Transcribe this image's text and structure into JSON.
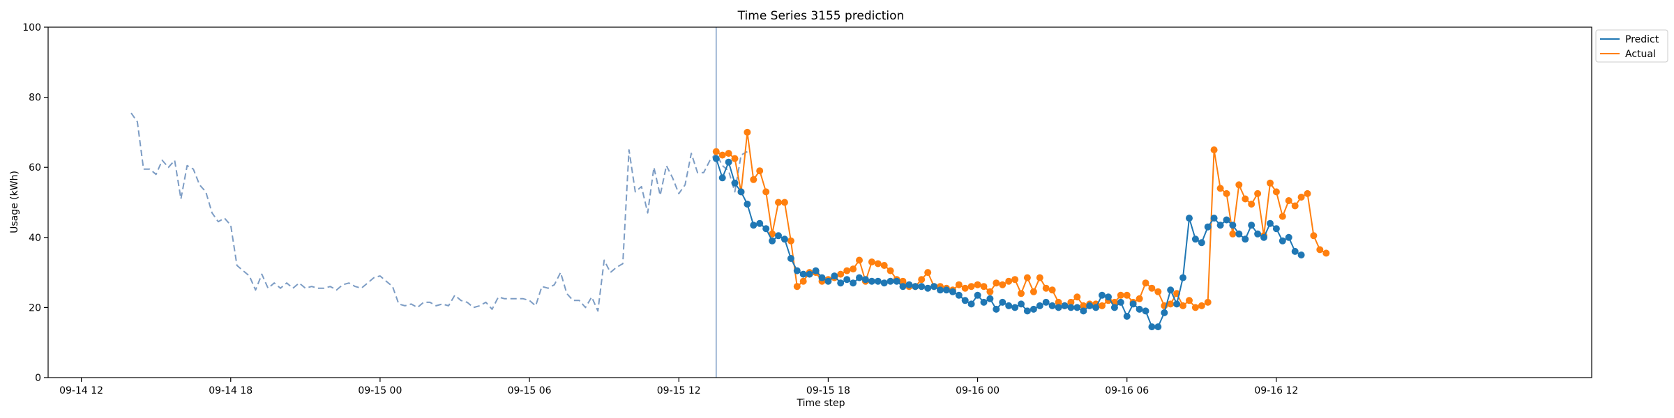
{
  "chart_data": {
    "type": "line",
    "title": "Time Series 3155 prediction",
    "xlabel": "Time step",
    "ylabel": "Usage (kWh)",
    "ylim": [
      0,
      100
    ],
    "y_ticks": [
      0,
      20,
      40,
      60,
      80,
      100
    ],
    "x_range": [
      "2000-09-14 10:40",
      "2000-09-17 00:40"
    ],
    "x_ticks": [
      {
        "t": "2000-09-14 12:00",
        "label": "09-14 12"
      },
      {
        "t": "2000-09-14 18:00",
        "label": "09-14 18"
      },
      {
        "t": "2000-09-15 00:00",
        "label": "09-15 00"
      },
      {
        "t": "2000-09-15 06:00",
        "label": "09-15 06"
      },
      {
        "t": "2000-09-15 12:00",
        "label": "09-15 12"
      },
      {
        "t": "2000-09-15 18:00",
        "label": "09-15 18"
      },
      {
        "t": "2000-09-16 00:00",
        "label": "09-16 00"
      },
      {
        "t": "2000-09-16 06:00",
        "label": "09-16 06"
      },
      {
        "t": "2000-09-16 12:00",
        "label": "09-16 12"
      }
    ],
    "forecast_start": "2000-09-15 13:30",
    "legend": {
      "placement": "top-right",
      "entries": [
        "Predict",
        "Actual"
      ]
    },
    "colors": {
      "history": "#7c9cc4",
      "predict": "#1f77b4",
      "actual": "#ff7f0e",
      "divider": "#7c9cc4"
    },
    "series": [
      {
        "key": "history",
        "x_start": "2000-09-14 14:00",
        "x_step_minutes": 15,
        "values": [
          75.5,
          73.0,
          59.5,
          59.5,
          58.0,
          62.0,
          60.0,
          62.0,
          51.0,
          60.5,
          59.5,
          55.0,
          53.0,
          47.0,
          44.5,
          45.5,
          43.5,
          32.0,
          30.5,
          29.0,
          25.0,
          29.5,
          25.5,
          27.0,
          25.5,
          27.0,
          25.5,
          27.0,
          25.5,
          26.0,
          25.5,
          25.5,
          26.0,
          25.0,
          26.5,
          27.0,
          26.0,
          25.5,
          27.0,
          28.5,
          29.0,
          27.5,
          26.0,
          21.0,
          20.5,
          21.0,
          20.0,
          21.5,
          21.5,
          20.5,
          21.0,
          20.5,
          23.5,
          22.0,
          21.5,
          20.0,
          20.5,
          21.5,
          19.5,
          23.0,
          22.5,
          22.5,
          22.5,
          22.5,
          22.0,
          20.5,
          26.0,
          25.5,
          26.5,
          30.0,
          24.0,
          22.0,
          22.0,
          20.0,
          23.0,
          19.0,
          33.5,
          30.0,
          31.5,
          32.5,
          65.0,
          53.0,
          54.5,
          47.0,
          60.0,
          52.0,
          60.5,
          57.0,
          52.5,
          55.0,
          64.0,
          58.5,
          58.5,
          62.0,
          64.0,
          60.5,
          59.0,
          53.0,
          63.5,
          64.5
        ]
      },
      {
        "key": "predict",
        "name": "Predict",
        "x_start": "2000-09-15 13:30",
        "x_step_minutes": 15,
        "values": [
          62.5,
          57.0,
          61.5,
          55.5,
          53.0,
          49.5,
          43.5,
          44.0,
          42.5,
          39.0,
          40.5,
          39.5,
          34.0,
          30.5,
          29.5,
          29.5,
          30.5,
          28.5,
          27.5,
          29.0,
          27.0,
          28.0,
          27.0,
          28.5,
          28.0,
          27.5,
          27.5,
          27.0,
          27.5,
          27.5,
          26.0,
          26.5,
          26.0,
          26.0,
          25.5,
          26.0,
          25.0,
          25.0,
          24.5,
          23.5,
          22.0,
          21.0,
          23.5,
          21.5,
          22.5,
          19.5,
          21.5,
          20.5,
          20.0,
          21.0,
          19.0,
          19.5,
          20.5,
          21.5,
          20.5,
          20.0,
          20.5,
          20.0,
          20.0,
          19.0,
          20.5,
          20.0,
          23.5,
          23.0,
          20.0,
          21.5,
          17.5,
          21.0,
          19.5,
          19.0,
          14.5,
          14.5,
          18.5,
          25.0,
          21.0,
          28.5,
          45.5,
          39.5,
          38.5,
          43.0,
          45.5,
          43.5,
          45.0,
          43.5,
          41.0,
          39.5,
          43.5,
          41.0,
          40.0,
          44.0,
          42.5,
          39.0,
          40.0,
          36.0,
          35.0
        ]
      },
      {
        "key": "actual",
        "name": "Actual",
        "x_start": "2000-09-15 13:30",
        "x_step_minutes": 15,
        "values": [
          64.5,
          63.5,
          64.0,
          62.5,
          53.0,
          70.0,
          56.5,
          59.0,
          53.0,
          41.0,
          50.0,
          50.0,
          39.0,
          26.0,
          27.5,
          30.0,
          30.0,
          27.5,
          28.0,
          28.5,
          29.5,
          30.5,
          31.0,
          33.5,
          27.5,
          33.0,
          32.5,
          32.0,
          30.5,
          28.0,
          27.5,
          26.0,
          26.0,
          28.0,
          30.0,
          26.0,
          26.0,
          25.5,
          25.0,
          26.5,
          25.5,
          26.0,
          26.5,
          26.0,
          24.5,
          27.0,
          26.5,
          27.5,
          28.0,
          24.0,
          28.5,
          24.5,
          28.5,
          25.5,
          25.0,
          21.5,
          20.5,
          21.5,
          23.0,
          20.5,
          21.0,
          21.0,
          20.5,
          22.0,
          21.5,
          23.5,
          23.5,
          21.5,
          22.5,
          27.0,
          25.5,
          24.5,
          20.5,
          21.0,
          24.0,
          20.5,
          22.0,
          20.0,
          20.5,
          21.5,
          65.0,
          54.0,
          52.5,
          41.0,
          55.0,
          51.0,
          49.5,
          52.5,
          40.5,
          55.5,
          53.0,
          46.0,
          50.5,
          49.0,
          51.5,
          52.5,
          40.5,
          36.5,
          35.5
        ]
      }
    ]
  }
}
